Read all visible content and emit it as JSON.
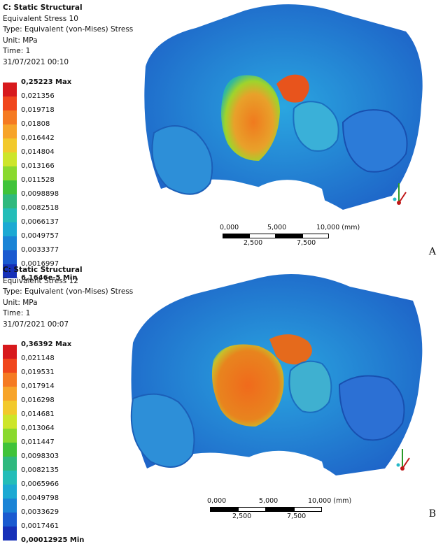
{
  "panels": [
    {
      "header": {
        "title": "C: Static Structural",
        "result": "Equivalent Stress 10",
        "type": "Type: Equivalent (von-Mises) Stress",
        "unit": "Unit: MPa",
        "time": "Time: 1",
        "date": "31/07/2021 00:10"
      },
      "legend": [
        "0,25223 Max",
        "0,021356",
        "0,019718",
        "0,01808",
        "0,016442",
        "0,014804",
        "0,013166",
        "0,011528",
        "0,0098898",
        "0,0082518",
        "0,0066137",
        "0,0049757",
        "0,0033377",
        "0,0016997",
        "6,1646e-5 Min"
      ],
      "scale": {
        "top": [
          "0,000",
          "5,000",
          "10,000 (mm)"
        ],
        "bottom": [
          "2,500",
          "7,500"
        ]
      },
      "label": "A"
    },
    {
      "header": {
        "title": "C: Static Structural",
        "result": "Equivalent Stress 12",
        "type": "Type: Equivalent (von-Mises) Stress",
        "unit": "Unit: MPa",
        "time": "Time: 1",
        "date": "31/07/2021 00:07"
      },
      "legend": [
        "0,36392 Max",
        "0,021148",
        "0,019531",
        "0,017914",
        "0,016298",
        "0,014681",
        "0,013064",
        "0,011447",
        "0,0098303",
        "0,0082135",
        "0,0065966",
        "0,0049798",
        "0,0033629",
        "0,0017461",
        "0,00012925 Min"
      ],
      "scale": {
        "top": [
          "0,000",
          "5,000",
          "10,000 (mm)"
        ],
        "bottom": [
          "2,500",
          "7,500"
        ]
      },
      "label": "B"
    }
  ],
  "legend_colors": [
    "#d7191c",
    "#f0461c",
    "#f57a22",
    "#f7a42a",
    "#f2c92c",
    "#cde52a",
    "#8ad92e",
    "#40c33a",
    "#2fb97e",
    "#24bdb8",
    "#1ca9d3",
    "#1a84d6",
    "#1a5ad0",
    "#1630b8"
  ]
}
